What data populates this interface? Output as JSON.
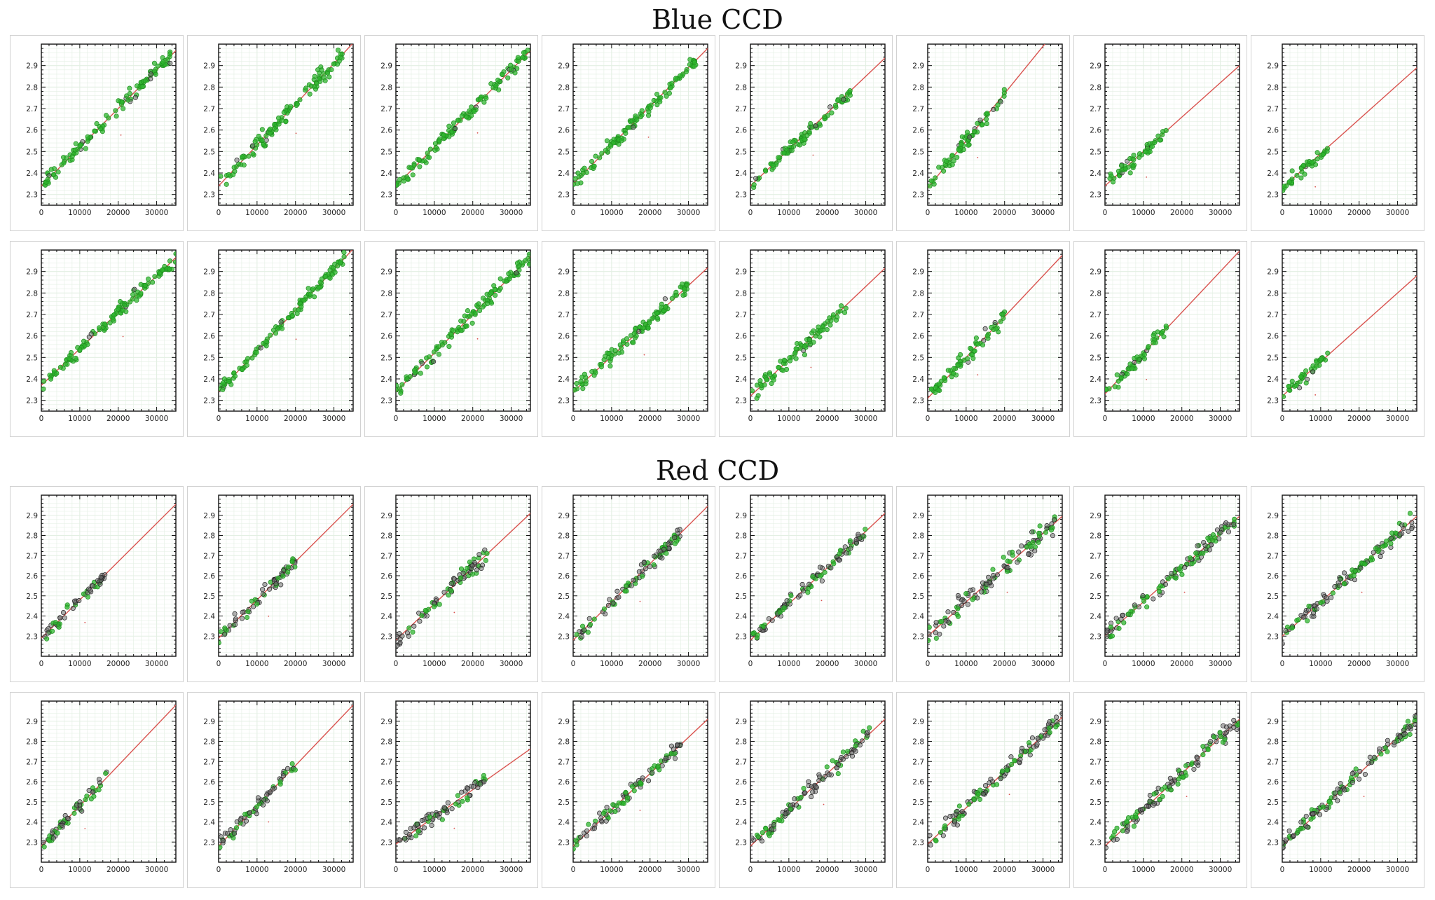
{
  "sections": [
    {
      "id": "blue",
      "title": "Blue CCD"
    },
    {
      "id": "red",
      "title": "Red CCD"
    }
  ],
  "colors": {
    "fit_line": "#d9534f",
    "point_good": "#2db52d",
    "point_rejected": "#6e6e6e",
    "grid": "#e3efe3",
    "frame": "#111111"
  },
  "chart_data": [
    {
      "section": "blue",
      "row": 0,
      "col": 0,
      "type": "scatter",
      "xlim": [
        0,
        35000
      ],
      "ylim": [
        2.25,
        3.0
      ],
      "xticks": [
        "0",
        "10000",
        "20000",
        "30000"
      ],
      "yticks": [
        "2.3",
        "2.4",
        "2.5",
        "2.6",
        "2.7",
        "2.8",
        "2.9"
      ],
      "fit": {
        "intercept": 2.34,
        "slope_per_10000": 0.18
      },
      "x_max": 34000,
      "noise": 0.018,
      "reject_frac": 0.12,
      "seed": 11
    },
    {
      "section": "blue",
      "row": 0,
      "col": 1,
      "type": "scatter",
      "xlim": [
        0,
        35000
      ],
      "ylim": [
        2.25,
        3.0
      ],
      "xticks": [
        "0",
        "10000",
        "20000",
        "30000"
      ],
      "yticks": [
        "2.3",
        "2.4",
        "2.5",
        "2.6",
        "2.7",
        "2.8",
        "2.9"
      ],
      "fit": {
        "intercept": 2.34,
        "slope_per_10000": 0.19
      },
      "x_max": 33000,
      "noise": 0.02,
      "reject_frac": 0.04,
      "seed": 12
    },
    {
      "section": "blue",
      "row": 0,
      "col": 2,
      "type": "scatter",
      "xlim": [
        0,
        35000
      ],
      "ylim": [
        2.25,
        3.0
      ],
      "xticks": [
        "0",
        "10000",
        "20000",
        "30000"
      ],
      "yticks": [
        "2.3",
        "2.4",
        "2.5",
        "2.6",
        "2.7",
        "2.8",
        "2.9"
      ],
      "fit": {
        "intercept": 2.34,
        "slope_per_10000": 0.18
      },
      "x_max": 35000,
      "noise": 0.017,
      "reject_frac": 0.05,
      "seed": 13
    },
    {
      "section": "blue",
      "row": 0,
      "col": 3,
      "type": "scatter",
      "xlim": [
        0,
        35000
      ],
      "ylim": [
        2.25,
        3.0
      ],
      "xticks": [
        "0",
        "10000",
        "20000",
        "30000"
      ],
      "yticks": [
        "2.3",
        "2.4",
        "2.5",
        "2.6",
        "2.7",
        "2.8",
        "2.9"
      ],
      "fit": {
        "intercept": 2.35,
        "slope_per_10000": 0.18
      },
      "x_max": 32000,
      "noise": 0.016,
      "reject_frac": 0.04,
      "seed": 14
    },
    {
      "section": "blue",
      "row": 0,
      "col": 4,
      "type": "scatter",
      "xlim": [
        0,
        35000
      ],
      "ylim": [
        2.25,
        3.0
      ],
      "xticks": [
        "0",
        "10000",
        "20000",
        "30000"
      ],
      "yticks": [
        "2.3",
        "2.4",
        "2.5",
        "2.6",
        "2.7",
        "2.8",
        "2.9"
      ],
      "fit": {
        "intercept": 2.34,
        "slope_per_10000": 0.17
      },
      "x_max": 26000,
      "noise": 0.016,
      "reject_frac": 0.08,
      "seed": 15
    },
    {
      "section": "blue",
      "row": 0,
      "col": 5,
      "type": "scatter",
      "xlim": [
        0,
        35000
      ],
      "ylim": [
        2.25,
        3.0
      ],
      "xticks": [
        "0",
        "10000",
        "20000",
        "30000"
      ],
      "yticks": [
        "2.3",
        "2.4",
        "2.5",
        "2.6",
        "2.7",
        "2.8",
        "2.9"
      ],
      "fit": {
        "intercept": 2.33,
        "slope_per_10000": 0.22
      },
      "x_max": 20000,
      "noise": 0.017,
      "reject_frac": 0.08,
      "seed": 16
    },
    {
      "section": "blue",
      "row": 0,
      "col": 6,
      "type": "scatter",
      "xlim": [
        0,
        35000
      ],
      "ylim": [
        2.25,
        3.0
      ],
      "xticks": [
        "0",
        "10000",
        "20000",
        "30000"
      ],
      "yticks": [
        "2.3",
        "2.4",
        "2.5",
        "2.6",
        "2.7",
        "2.8",
        "2.9"
      ],
      "fit": {
        "intercept": 2.34,
        "slope_per_10000": 0.16
      },
      "x_max": 16000,
      "noise": 0.018,
      "reject_frac": 0.1,
      "seed": 17
    },
    {
      "section": "blue",
      "row": 0,
      "col": 7,
      "type": "scatter",
      "xlim": [
        0,
        35000
      ],
      "ylim": [
        2.25,
        3.0
      ],
      "xticks": [
        "0",
        "10000",
        "20000",
        "30000"
      ],
      "yticks": [
        "2.3",
        "2.4",
        "2.5",
        "2.6",
        "2.7",
        "2.8",
        "2.9"
      ],
      "fit": {
        "intercept": 2.33,
        "slope_per_10000": 0.16
      },
      "x_max": 12000,
      "noise": 0.016,
      "reject_frac": 0.1,
      "seed": 18
    },
    {
      "section": "blue",
      "row": 1,
      "col": 0,
      "type": "scatter",
      "xlim": [
        0,
        35000
      ],
      "ylim": [
        2.25,
        3.0
      ],
      "xticks": [
        "0",
        "10000",
        "20000",
        "30000"
      ],
      "yticks": [
        "2.3",
        "2.4",
        "2.5",
        "2.6",
        "2.7",
        "2.8",
        "2.9"
      ],
      "fit": {
        "intercept": 2.37,
        "slope_per_10000": 0.17
      },
      "x_max": 35000,
      "noise": 0.018,
      "reject_frac": 0.03,
      "seed": 21
    },
    {
      "section": "blue",
      "row": 1,
      "col": 1,
      "type": "scatter",
      "xlim": [
        0,
        35000
      ],
      "ylim": [
        2.25,
        3.0
      ],
      "xticks": [
        "0",
        "10000",
        "20000",
        "30000"
      ],
      "yticks": [
        "2.3",
        "2.4",
        "2.5",
        "2.6",
        "2.7",
        "2.8",
        "2.9"
      ],
      "fit": {
        "intercept": 2.34,
        "slope_per_10000": 0.19
      },
      "x_max": 33000,
      "noise": 0.015,
      "reject_frac": 0.03,
      "seed": 22
    },
    {
      "section": "blue",
      "row": 1,
      "col": 2,
      "type": "scatter",
      "xlim": [
        0,
        35000
      ],
      "ylim": [
        2.25,
        3.0
      ],
      "xticks": [
        "0",
        "10000",
        "20000",
        "30000"
      ],
      "yticks": [
        "2.3",
        "2.4",
        "2.5",
        "2.6",
        "2.7",
        "2.8",
        "2.9"
      ],
      "fit": {
        "intercept": 2.34,
        "slope_per_10000": 0.18
      },
      "x_max": 35000,
      "noise": 0.018,
      "reject_frac": 0.05,
      "seed": 23
    },
    {
      "section": "blue",
      "row": 1,
      "col": 3,
      "type": "scatter",
      "xlim": [
        0,
        35000
      ],
      "ylim": [
        2.25,
        3.0
      ],
      "xticks": [
        "0",
        "10000",
        "20000",
        "30000"
      ],
      "yticks": [
        "2.3",
        "2.4",
        "2.5",
        "2.6",
        "2.7",
        "2.8",
        "2.9"
      ],
      "fit": {
        "intercept": 2.34,
        "slope_per_10000": 0.165
      },
      "x_max": 30000,
      "noise": 0.016,
      "reject_frac": 0.02,
      "seed": 24
    },
    {
      "section": "blue",
      "row": 1,
      "col": 4,
      "type": "scatter",
      "xlim": [
        0,
        35000
      ],
      "ylim": [
        2.25,
        3.0
      ],
      "xticks": [
        "0",
        "10000",
        "20000",
        "30000"
      ],
      "yticks": [
        "2.3",
        "2.4",
        "2.5",
        "2.6",
        "2.7",
        "2.8",
        "2.9"
      ],
      "fit": {
        "intercept": 2.32,
        "slope_per_10000": 0.17
      },
      "x_max": 25000,
      "noise": 0.018,
      "reject_frac": 0.06,
      "seed": 25
    },
    {
      "section": "blue",
      "row": 1,
      "col": 5,
      "type": "scatter",
      "xlim": [
        0,
        35000
      ],
      "ylim": [
        2.25,
        3.0
      ],
      "xticks": [
        "0",
        "10000",
        "20000",
        "30000"
      ],
      "yticks": [
        "2.3",
        "2.4",
        "2.5",
        "2.6",
        "2.7",
        "2.8",
        "2.9"
      ],
      "fit": {
        "intercept": 2.31,
        "slope_per_10000": 0.19
      },
      "x_max": 20000,
      "noise": 0.016,
      "reject_frac": 0.06,
      "seed": 26
    },
    {
      "section": "blue",
      "row": 1,
      "col": 6,
      "type": "scatter",
      "xlim": [
        0,
        35000
      ],
      "ylim": [
        2.25,
        3.0
      ],
      "xticks": [
        "0",
        "10000",
        "20000",
        "30000"
      ],
      "yticks": [
        "2.3",
        "2.4",
        "2.5",
        "2.6",
        "2.7",
        "2.8",
        "2.9"
      ],
      "fit": {
        "intercept": 2.33,
        "slope_per_10000": 0.19
      },
      "x_max": 16000,
      "noise": 0.018,
      "reject_frac": 0.12,
      "seed": 27
    },
    {
      "section": "blue",
      "row": 1,
      "col": 7,
      "type": "scatter",
      "xlim": [
        0,
        35000
      ],
      "ylim": [
        2.25,
        3.0
      ],
      "xticks": [
        "0",
        "10000",
        "20000",
        "30000"
      ],
      "yticks": [
        "2.3",
        "2.4",
        "2.5",
        "2.6",
        "2.7",
        "2.8",
        "2.9"
      ],
      "fit": {
        "intercept": 2.32,
        "slope_per_10000": 0.16
      },
      "x_max": 12000,
      "noise": 0.016,
      "reject_frac": 0.06,
      "seed": 28
    },
    {
      "section": "red",
      "row": 0,
      "col": 0,
      "type": "scatter",
      "xlim": [
        0,
        35000
      ],
      "ylim": [
        2.2,
        3.0
      ],
      "xticks": [
        "0",
        "10000",
        "20000",
        "30000"
      ],
      "yticks": [
        "2.3",
        "2.4",
        "2.5",
        "2.6",
        "2.7",
        "2.8",
        "2.9"
      ],
      "fit": {
        "intercept": 2.29,
        "slope_per_10000": 0.19
      },
      "x_max": 17000,
      "noise": 0.017,
      "reject_frac": 0.7,
      "seed": 31
    },
    {
      "section": "red",
      "row": 0,
      "col": 1,
      "type": "scatter",
      "xlim": [
        0,
        35000
      ],
      "ylim": [
        2.2,
        3.0
      ],
      "xticks": [
        "0",
        "10000",
        "20000",
        "30000"
      ],
      "yticks": [
        "2.3",
        "2.4",
        "2.5",
        "2.6",
        "2.7",
        "2.8",
        "2.9"
      ],
      "fit": {
        "intercept": 2.29,
        "slope_per_10000": 0.19
      },
      "x_max": 20000,
      "noise": 0.018,
      "reject_frac": 0.6,
      "seed": 32
    },
    {
      "section": "red",
      "row": 0,
      "col": 2,
      "type": "scatter",
      "xlim": [
        0,
        35000
      ],
      "ylim": [
        2.2,
        3.0
      ],
      "xticks": [
        "0",
        "10000",
        "20000",
        "30000"
      ],
      "yticks": [
        "2.3",
        "2.4",
        "2.5",
        "2.6",
        "2.7",
        "2.8",
        "2.9"
      ],
      "fit": {
        "intercept": 2.28,
        "slope_per_10000": 0.18
      },
      "x_max": 24000,
      "noise": 0.02,
      "reject_frac": 0.6,
      "seed": 33
    },
    {
      "section": "red",
      "row": 0,
      "col": 3,
      "type": "scatter",
      "xlim": [
        0,
        35000
      ],
      "ylim": [
        2.2,
        3.0
      ],
      "xticks": [
        "0",
        "10000",
        "20000",
        "30000"
      ],
      "yticks": [
        "2.3",
        "2.4",
        "2.5",
        "2.6",
        "2.7",
        "2.8",
        "2.9"
      ],
      "fit": {
        "intercept": 2.28,
        "slope_per_10000": 0.19
      },
      "x_max": 28000,
      "noise": 0.016,
      "reject_frac": 0.55,
      "seed": 34
    },
    {
      "section": "red",
      "row": 0,
      "col": 4,
      "type": "scatter",
      "xlim": [
        0,
        35000
      ],
      "ylim": [
        2.2,
        3.0
      ],
      "xticks": [
        "0",
        "10000",
        "20000",
        "30000"
      ],
      "yticks": [
        "2.3",
        "2.4",
        "2.5",
        "2.6",
        "2.7",
        "2.8",
        "2.9"
      ],
      "fit": {
        "intercept": 2.28,
        "slope_per_10000": 0.18
      },
      "x_max": 30000,
      "noise": 0.018,
      "reject_frac": 0.6,
      "seed": 35
    },
    {
      "section": "red",
      "row": 0,
      "col": 5,
      "type": "scatter",
      "xlim": [
        0,
        35000
      ],
      "ylim": [
        2.2,
        3.0
      ],
      "xticks": [
        "0",
        "10000",
        "20000",
        "30000"
      ],
      "yticks": [
        "2.3",
        "2.4",
        "2.5",
        "2.6",
        "2.7",
        "2.8",
        "2.9"
      ],
      "fit": {
        "intercept": 2.3,
        "slope_per_10000": 0.17
      },
      "x_max": 34000,
      "noise": 0.025,
      "reject_frac": 0.6,
      "seed": 36
    },
    {
      "section": "red",
      "row": 0,
      "col": 6,
      "type": "scatter",
      "xlim": [
        0,
        35000
      ],
      "ylim": [
        2.2,
        3.0
      ],
      "xticks": [
        "0",
        "10000",
        "20000",
        "30000"
      ],
      "yticks": [
        "2.3",
        "2.4",
        "2.5",
        "2.6",
        "2.7",
        "2.8",
        "2.9"
      ],
      "fit": {
        "intercept": 2.3,
        "slope_per_10000": 0.17
      },
      "x_max": 34000,
      "noise": 0.02,
      "reject_frac": 0.55,
      "seed": 37
    },
    {
      "section": "red",
      "row": 0,
      "col": 7,
      "type": "scatter",
      "xlim": [
        0,
        35000
      ],
      "ylim": [
        2.2,
        3.0
      ],
      "xticks": [
        "0",
        "10000",
        "20000",
        "30000"
      ],
      "yticks": [
        "2.3",
        "2.4",
        "2.5",
        "2.6",
        "2.7",
        "2.8",
        "2.9"
      ],
      "fit": {
        "intercept": 2.3,
        "slope_per_10000": 0.17
      },
      "x_max": 34000,
      "noise": 0.02,
      "reject_frac": 0.6,
      "seed": 38
    },
    {
      "section": "red",
      "row": 1,
      "col": 0,
      "type": "scatter",
      "xlim": [
        0,
        35000
      ],
      "ylim": [
        2.2,
        3.0
      ],
      "xticks": [
        "0",
        "10000",
        "20000",
        "30000"
      ],
      "yticks": [
        "2.3",
        "2.4",
        "2.5",
        "2.6",
        "2.7",
        "2.8",
        "2.9"
      ],
      "fit": {
        "intercept": 2.28,
        "slope_per_10000": 0.2
      },
      "x_max": 17000,
      "noise": 0.016,
      "reject_frac": 0.6,
      "seed": 41
    },
    {
      "section": "red",
      "row": 1,
      "col": 1,
      "type": "scatter",
      "xlim": [
        0,
        35000
      ],
      "ylim": [
        2.2,
        3.0
      ],
      "xticks": [
        "0",
        "10000",
        "20000",
        "30000"
      ],
      "yticks": [
        "2.3",
        "2.4",
        "2.5",
        "2.6",
        "2.7",
        "2.8",
        "2.9"
      ],
      "fit": {
        "intercept": 2.28,
        "slope_per_10000": 0.2
      },
      "x_max": 20000,
      "noise": 0.016,
      "reject_frac": 0.6,
      "seed": 42
    },
    {
      "section": "red",
      "row": 1,
      "col": 2,
      "type": "scatter",
      "xlim": [
        0,
        35000
      ],
      "ylim": [
        2.2,
        3.0
      ],
      "xticks": [
        "0",
        "10000",
        "20000",
        "30000"
      ],
      "yticks": [
        "2.3",
        "2.4",
        "2.5",
        "2.6",
        "2.7",
        "2.8",
        "2.9"
      ],
      "fit": {
        "intercept": 2.29,
        "slope_per_10000": 0.135
      },
      "x_max": 24000,
      "noise": 0.016,
      "reject_frac": 0.65,
      "seed": 43
    },
    {
      "section": "red",
      "row": 1,
      "col": 3,
      "type": "scatter",
      "xlim": [
        0,
        35000
      ],
      "ylim": [
        2.2,
        3.0
      ],
      "xticks": [
        "0",
        "10000",
        "20000",
        "30000"
      ],
      "yticks": [
        "2.3",
        "2.4",
        "2.5",
        "2.6",
        "2.7",
        "2.8",
        "2.9"
      ],
      "fit": {
        "intercept": 2.28,
        "slope_per_10000": 0.18
      },
      "x_max": 28000,
      "noise": 0.016,
      "reject_frac": 0.6,
      "seed": 44
    },
    {
      "section": "red",
      "row": 1,
      "col": 4,
      "type": "scatter",
      "xlim": [
        0,
        35000
      ],
      "ylim": [
        2.2,
        3.0
      ],
      "xticks": [
        "0",
        "10000",
        "20000",
        "30000"
      ],
      "yticks": [
        "2.3",
        "2.4",
        "2.5",
        "2.6",
        "2.7",
        "2.8",
        "2.9"
      ],
      "fit": {
        "intercept": 2.28,
        "slope_per_10000": 0.18
      },
      "x_max": 31000,
      "noise": 0.018,
      "reject_frac": 0.6,
      "seed": 45
    },
    {
      "section": "red",
      "row": 1,
      "col": 5,
      "type": "scatter",
      "xlim": [
        0,
        35000
      ],
      "ylim": [
        2.2,
        3.0
      ],
      "xticks": [
        "0",
        "10000",
        "20000",
        "30000"
      ],
      "yticks": [
        "2.3",
        "2.4",
        "2.5",
        "2.6",
        "2.7",
        "2.8",
        "2.9"
      ],
      "fit": {
        "intercept": 2.29,
        "slope_per_10000": 0.18
      },
      "x_max": 35000,
      "noise": 0.018,
      "reject_frac": 0.6,
      "seed": 46
    },
    {
      "section": "red",
      "row": 1,
      "col": 6,
      "type": "scatter",
      "xlim": [
        0,
        35000
      ],
      "ylim": [
        2.2,
        3.0
      ],
      "xticks": [
        "0",
        "10000",
        "20000",
        "30000"
      ],
      "yticks": [
        "2.3",
        "2.4",
        "2.5",
        "2.6",
        "2.7",
        "2.8",
        "2.9"
      ],
      "fit": {
        "intercept": 2.28,
        "slope_per_10000": 0.18
      },
      "x_max": 35000,
      "noise": 0.02,
      "reject_frac": 0.6,
      "seed": 47
    },
    {
      "section": "red",
      "row": 1,
      "col": 7,
      "type": "scatter",
      "xlim": [
        0,
        35000
      ],
      "ylim": [
        2.2,
        3.0
      ],
      "xticks": [
        "0",
        "10000",
        "20000",
        "30000"
      ],
      "yticks": [
        "2.3",
        "2.4",
        "2.5",
        "2.6",
        "2.7",
        "2.8",
        "2.9"
      ],
      "fit": {
        "intercept": 2.28,
        "slope_per_10000": 0.18
      },
      "x_max": 35000,
      "noise": 0.018,
      "reject_frac": 0.6,
      "seed": 48
    }
  ]
}
